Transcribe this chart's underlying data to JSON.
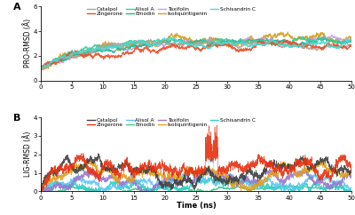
{
  "compounds": [
    "Catalpol",
    "Zingerone",
    "Alisol A",
    "Emodin",
    "Taxifolin",
    "Isoliquiritigenin",
    "Schisandrin C"
  ],
  "colors_pro": [
    "#b8a090",
    "#e8502a",
    "#40c8a0",
    "#20b890",
    "#c8a0d8",
    "#d4a020",
    "#48d8d0"
  ],
  "colors_lig": [
    "#404040",
    "#e83010",
    "#60c8f0",
    "#40c890",
    "#9878d0",
    "#e0a020",
    "#30d0c8"
  ],
  "xlabel": "Time (ns)",
  "ylabel_a": "PRO-RMSD (Å)",
  "ylabel_b": "LIG-RMSD (Å)",
  "xlim": [
    0,
    50
  ],
  "ylim_a": [
    0,
    6
  ],
  "ylim_b": [
    0,
    4
  ],
  "yticks_a": [
    0,
    2,
    4,
    6
  ],
  "yticks_b": [
    0,
    1,
    2,
    3,
    4
  ],
  "xticks": [
    0,
    5,
    10,
    15,
    20,
    25,
    30,
    35,
    40,
    45,
    50
  ],
  "seed": 42,
  "n_points": 5000,
  "label_a": "A",
  "label_b": "B"
}
